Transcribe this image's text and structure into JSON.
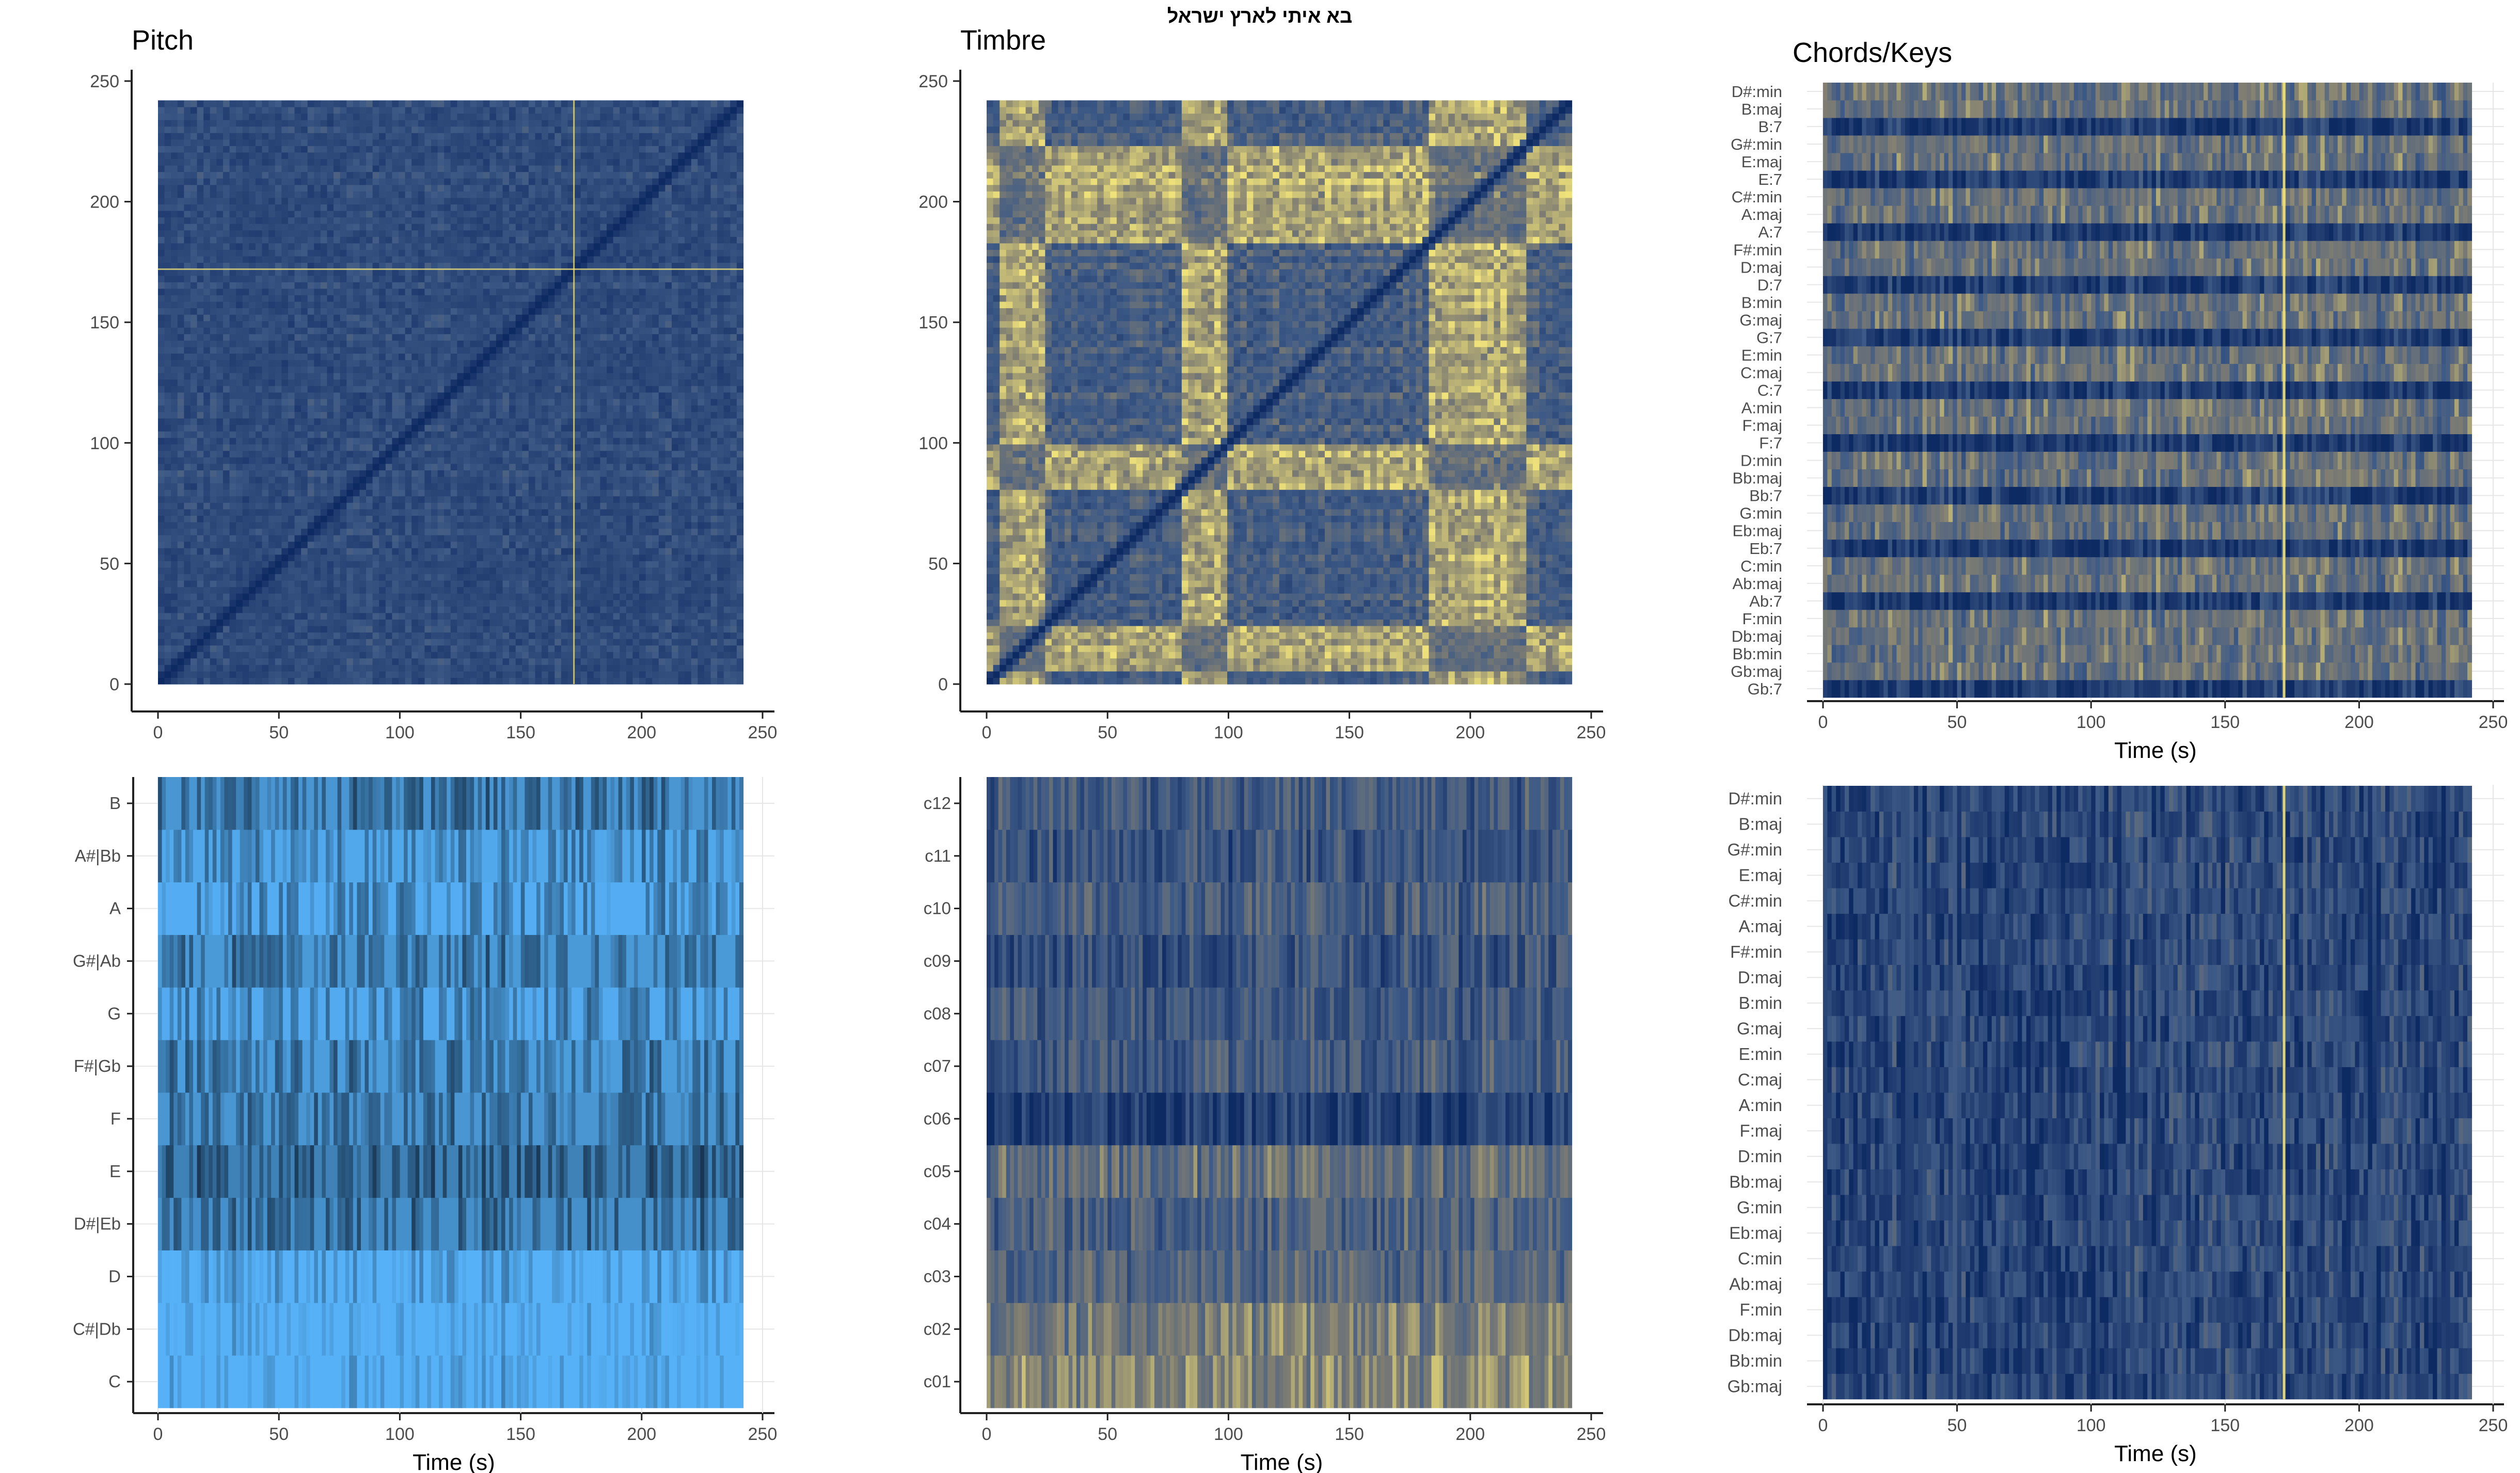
{
  "page": {
    "title": "בא איתי לארץ ישראל"
  },
  "colors": {
    "dark_navy": "#0e2a63",
    "mid_blue": "#3e5a86",
    "gray_olive": "#7f7d72",
    "light_yellow": "#f0e27a",
    "sky_blue": "#56b1f7",
    "deep_blue": "#132b43",
    "axis": "#222222",
    "grid": "#e6e6e6",
    "tick_label": "#4d4d4d"
  },
  "chart_data": [
    {
      "id": "pitch_ssm",
      "type": "heatmap",
      "title": "Pitch",
      "xlabel": "",
      "ylabel": "",
      "xlim": [
        0,
        250
      ],
      "ylim": [
        0,
        250
      ],
      "x_ticks": [
        "0",
        "50",
        "100",
        "150",
        "200",
        "250"
      ],
      "y_ticks": [
        "0",
        "50",
        "100",
        "150",
        "200",
        "250"
      ],
      "extent": [
        0,
        242
      ],
      "palette": "cividis",
      "highlight_time": 172,
      "mean_level": 0.18
    },
    {
      "id": "timbre_ssm",
      "type": "heatmap",
      "title": "Timbre",
      "xlabel": "",
      "ylabel": "",
      "xlim": [
        0,
        250
      ],
      "ylim": [
        0,
        250
      ],
      "x_ticks": [
        "0",
        "50",
        "100",
        "150",
        "200",
        "250"
      ],
      "y_ticks": [
        "0",
        "50",
        "100",
        "150",
        "200",
        "250"
      ],
      "extent": [
        0,
        242
      ],
      "palette": "cividis",
      "bright_bands": [
        [
          5,
          25
        ],
        [
          82,
          100
        ],
        [
          182,
          222
        ]
      ],
      "mean_level": 0.32
    },
    {
      "id": "chordogram",
      "type": "heatmap",
      "title": "Chords/Keys",
      "xlabel": "Time (s)",
      "ylabel": "",
      "xlim": [
        0,
        250
      ],
      "x_ticks": [
        "0",
        "50",
        "100",
        "150",
        "200",
        "250"
      ],
      "extent": [
        0,
        242
      ],
      "palette": "cividis",
      "categories": [
        "Gb:7",
        "Gb:maj",
        "Bb:min",
        "Db:maj",
        "F:min",
        "Ab:7",
        "Ab:maj",
        "C:min",
        "Eb:7",
        "Eb:maj",
        "G:min",
        "Bb:7",
        "Bb:maj",
        "D:min",
        "F:7",
        "F:maj",
        "A:min",
        "C:7",
        "C:maj",
        "E:min",
        "G:7",
        "G:maj",
        "B:min",
        "D:7",
        "D:maj",
        "F#:min",
        "A:7",
        "A:maj",
        "C#:min",
        "E:7",
        "E:maj",
        "G#:min",
        "B:7",
        "B:maj",
        "D#:min"
      ],
      "dark_rows": [
        "Gb:7",
        "Ab:7",
        "Eb:7",
        "Bb:7",
        "F:7",
        "C:7",
        "G:7",
        "D:7",
        "A:7",
        "E:7",
        "B:7"
      ],
      "highlight_time": 172
    },
    {
      "id": "chromagram",
      "type": "heatmap",
      "title": "",
      "xlabel": "Time (s)",
      "ylabel": "",
      "xlim": [
        0,
        250
      ],
      "x_ticks": [
        "0",
        "50",
        "100",
        "150",
        "200",
        "250"
      ],
      "extent": [
        0,
        242
      ],
      "palette": "blues",
      "categories": [
        "C",
        "C#|Db",
        "D",
        "D#|Eb",
        "E",
        "F",
        "F#|Gb",
        "G",
        "G#|Ab",
        "A",
        "A#|Bb",
        "B"
      ],
      "row_levels": [
        0.9,
        0.95,
        0.82,
        0.4,
        0.3,
        0.45,
        0.5,
        0.6,
        0.48,
        0.62,
        0.58,
        0.45
      ]
    },
    {
      "id": "cepstrogram",
      "type": "heatmap",
      "title": "",
      "xlabel": "Time (s)",
      "ylabel": "",
      "xlim": [
        0,
        250
      ],
      "x_ticks": [
        "0",
        "50",
        "100",
        "150",
        "200",
        "250"
      ],
      "extent": [
        0,
        242
      ],
      "palette": "cividis",
      "categories": [
        "c01",
        "c02",
        "c03",
        "c04",
        "c05",
        "c06",
        "c07",
        "c08",
        "c09",
        "c10",
        "c11",
        "c12"
      ],
      "row_levels": [
        0.68,
        0.62,
        0.45,
        0.42,
        0.52,
        0.15,
        0.38,
        0.35,
        0.3,
        0.4,
        0.3,
        0.36
      ]
    },
    {
      "id": "keygram",
      "type": "heatmap",
      "title": "",
      "xlabel": "Time (s)",
      "ylabel": "",
      "xlim": [
        0,
        250
      ],
      "x_ticks": [
        "0",
        "50",
        "100",
        "150",
        "200",
        "250"
      ],
      "extent": [
        0,
        242
      ],
      "palette": "cividis",
      "categories": [
        "Gb:maj",
        "Bb:min",
        "Db:maj",
        "F:min",
        "Ab:maj",
        "C:min",
        "Eb:maj",
        "G:min",
        "Bb:maj",
        "D:min",
        "F:maj",
        "A:min",
        "C:maj",
        "E:min",
        "G:maj",
        "B:min",
        "D:maj",
        "F#:min",
        "A:maj",
        "C#:min",
        "E:maj",
        "G#:min",
        "B:maj",
        "D#:min"
      ],
      "highlight_time": 172,
      "mean_level": 0.2
    }
  ]
}
